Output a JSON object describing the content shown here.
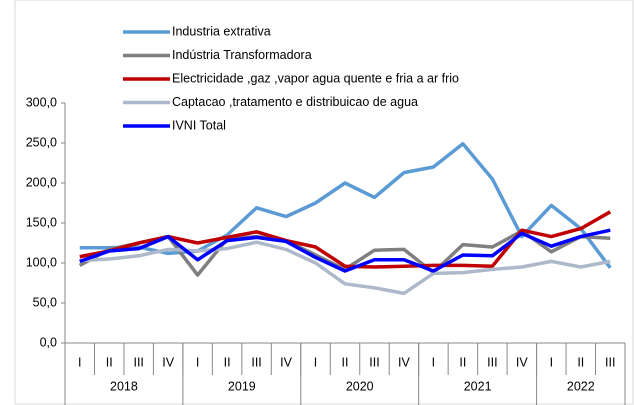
{
  "chart_data": {
    "type": "line",
    "categories": [
      "I",
      "II",
      "III",
      "IV",
      "I",
      "II",
      "III",
      "IV",
      "I",
      "II",
      "III",
      "IV",
      "I",
      "II",
      "III",
      "IV",
      "I",
      "II",
      "III"
    ],
    "x_groups": [
      {
        "label": "2018",
        "size": 4
      },
      {
        "label": "2019",
        "size": 4
      },
      {
        "label": "2020",
        "size": 4
      },
      {
        "label": "2021",
        "size": 4
      },
      {
        "label": "2022",
        "size": 3
      }
    ],
    "series": [
      {
        "name": "Industria extrativa",
        "color": "#5b9bd5",
        "values": [
          119,
          119,
          120,
          112,
          115,
          135,
          169,
          158,
          175,
          200,
          182,
          213,
          220,
          249,
          205,
          133,
          172,
          143,
          94
        ]
      },
      {
        "name": "Indústria Transformadora",
        "color": "#7f7f7f",
        "values": [
          97,
          117,
          125,
          133,
          85,
          130,
          133,
          128,
          110,
          92,
          116,
          117,
          88,
          123,
          120,
          140,
          114,
          133,
          131
        ]
      },
      {
        "name": "Electricidade ,gaz ,vapor agua quente e fria a ar frio",
        "color": "#c00000",
        "values": [
          108,
          115,
          125,
          133,
          125,
          132,
          139,
          128,
          120,
          96,
          95,
          96,
          97,
          97,
          96,
          141,
          133,
          143,
          164
        ]
      },
      {
        "name": "Captacao ,tratamento e distribuicao de agua",
        "color": "#adb9ca",
        "values": [
          103,
          105,
          109,
          117,
          115,
          118,
          126,
          117,
          100,
          74,
          69,
          62,
          87,
          88,
          92,
          95,
          102,
          95,
          102
        ]
      },
      {
        "name": "IVNI Total",
        "color": "#0000ff",
        "values": [
          102,
          115,
          118,
          133,
          104,
          128,
          132,
          127,
          107,
          90,
          104,
          104,
          90,
          110,
          109,
          137,
          121,
          133,
          141
        ]
      }
    ],
    "ylim": [
      0,
      300
    ],
    "yticks": [
      {
        "value": 0,
        "label": "0,0"
      },
      {
        "value": 50,
        "label": "50,0"
      },
      {
        "value": 100,
        "label": "100,0"
      },
      {
        "value": 150,
        "label": "150,0"
      },
      {
        "value": 200,
        "label": "200,0"
      },
      {
        "value": 250,
        "label": "250,0"
      },
      {
        "value": 300,
        "label": "300,0"
      }
    ],
    "legend": "top-left"
  }
}
